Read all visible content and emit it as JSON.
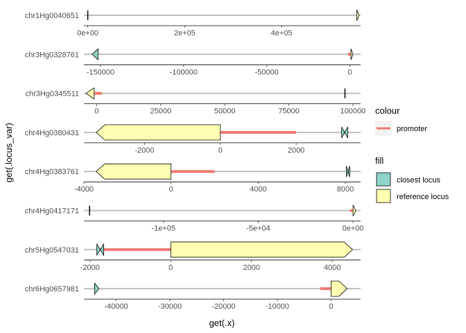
{
  "chart_data": {
    "type": "gene-track",
    "x_label": "get(.x)",
    "y_label": "get(.locus_var)",
    "colors": {
      "promoter": "#F07870",
      "closest_locus": "#8DD3C7",
      "reference_locus": "#FFFFB3",
      "baseline": "#BEBEBE",
      "outline": "#000000"
    },
    "legend": {
      "colour_title": "colour",
      "colour_items": [
        {
          "label": "promoter",
          "color": "#F07870"
        }
      ],
      "fill_title": "fill",
      "fill_items": [
        {
          "label": "closest locus",
          "color": "#8DD3C7"
        },
        {
          "label": "reference locus",
          "color": "#FFFFB3"
        }
      ]
    },
    "panels": [
      {
        "label": "chr1Hg0040651",
        "xlim": [
          -8000,
          563000
        ],
        "ticks": [
          0,
          200000,
          400000
        ],
        "tick_labels": [
          "0e+00",
          "2e+05",
          "4e+05"
        ],
        "baseline": [
          -8000,
          563000
        ],
        "promoter": null,
        "genes": [
          {
            "fill": "reference",
            "start": 0,
            "end": 0,
            "tipped": false
          },
          {
            "fill": "reference",
            "start": 555000,
            "end": 560000,
            "tipped": true
          }
        ]
      },
      {
        "label": "chr3Hg0328761",
        "xlim": [
          -160000,
          6500
        ],
        "ticks": [
          -150000,
          -100000,
          -50000,
          0
        ],
        "tick_labels": [
          "-150000",
          "-100000",
          "-50000",
          "0"
        ],
        "baseline": [
          -160000,
          6500
        ],
        "promoter": [
          -1000,
          1000
        ],
        "genes": [
          {
            "fill": "closest",
            "start": -151500,
            "end": -155000,
            "tipped": true
          },
          {
            "fill": "reference",
            "start": 700,
            "end": 1900,
            "tipped": true
          }
        ]
      },
      {
        "label": "chr3Hg0345511",
        "xlim": [
          -5000,
          103000
        ],
        "ticks": [
          0,
          25000,
          50000,
          75000,
          100000
        ],
        "tick_labels": [
          "0",
          "25000",
          "50000",
          "75000",
          "100000"
        ],
        "baseline": [
          -5000,
          103000
        ],
        "promoter": [
          -1000,
          2000
        ],
        "genes": [
          {
            "fill": "reference",
            "start": -1000,
            "end": -4200,
            "tipped": true
          },
          {
            "fill": "reference",
            "start": 96900,
            "end": 97300,
            "tipped": false
          }
        ]
      },
      {
        "label": "chr4Hg0380431",
        "xlim": [
          -3600,
          3700
        ],
        "ticks": [
          -2000,
          0,
          2000
        ],
        "tick_labels": [
          "-2000",
          "0",
          "2000"
        ],
        "baseline": [
          -3600,
          3700
        ],
        "promoter": [
          0,
          2000
        ],
        "genes": [
          {
            "fill": "reference",
            "start": 0,
            "end": -3270,
            "tipped": true
          },
          {
            "fill": "closest",
            "start": 3200,
            "end": 3360,
            "tipped": true,
            "bow": true
          }
        ]
      },
      {
        "label": "chr4Hg0383761",
        "xlim": [
          -4000,
          8700
        ],
        "ticks": [
          -4000,
          0,
          4000,
          8000
        ],
        "tick_labels": [
          "-4000",
          "0",
          "4000",
          "8000"
        ],
        "baseline": [
          -4000,
          8700
        ],
        "promoter": [
          0,
          2000
        ],
        "genes": [
          {
            "fill": "reference",
            "start": 0,
            "end": -3430,
            "tipped": true
          },
          {
            "fill": "closest",
            "start": 8050,
            "end": 8200,
            "tipped": true,
            "bow": true
          }
        ]
      },
      {
        "label": "chr4Hg0417171",
        "xlim": [
          -142000,
          4000
        ],
        "ticks": [
          -100000,
          -50000,
          0
        ],
        "tick_labels": [
          "-1e+05",
          "-5e+04",
          "0e+00"
        ],
        "baseline": [
          -142000,
          4000
        ],
        "promoter": [
          -1500,
          500
        ],
        "genes": [
          {
            "fill": "reference",
            "start": -139000,
            "end": -139000,
            "tipped": false
          },
          {
            "fill": "reference",
            "start": 0,
            "end": 1500,
            "tipped": true
          }
        ]
      },
      {
        "label": "chr5Hg0547031",
        "xlim": [
          -2150,
          4700
        ],
        "ticks": [
          -2000,
          0,
          2000,
          4000
        ],
        "tick_labels": [
          "-2000",
          "0",
          "2000",
          "4000"
        ],
        "baseline": [
          -2150,
          4700
        ],
        "promoter": [
          -1800,
          0
        ],
        "genes": [
          {
            "fill": "reference",
            "start": 0,
            "end": 4500,
            "tipped": true
          },
          {
            "fill": "closest",
            "start": -1660,
            "end": -1830,
            "tipped": true,
            "bow": true
          }
        ]
      },
      {
        "label": "chr6Hg0657981",
        "xlim": [
          -46000,
          5500
        ],
        "ticks": [
          -40000,
          -30000,
          -20000,
          -10000,
          0
        ],
        "tick_labels": [
          "-40000",
          "-30000",
          "-20000",
          "-10000",
          "0"
        ],
        "baseline": [
          -46000,
          5500
        ],
        "promoter": [
          -2000,
          0
        ],
        "genes": [
          {
            "fill": "closest",
            "start": -44000,
            "end": -43200,
            "tipped": true,
            "pointLeft": false
          },
          {
            "fill": "reference",
            "start": 0,
            "end": 3000,
            "tipped": true
          }
        ]
      }
    ]
  }
}
